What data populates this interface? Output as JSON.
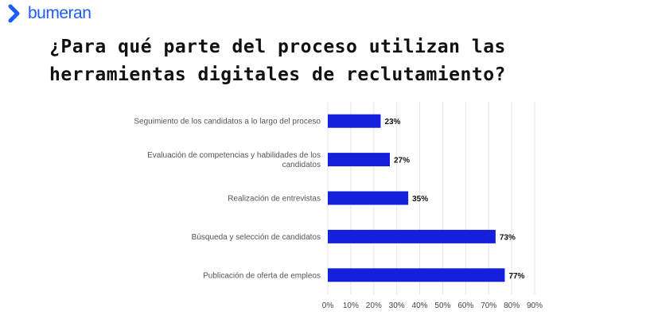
{
  "brand": {
    "name": "bumeran",
    "logo_icon": "chevron-right-icon",
    "color": "#1d5cff"
  },
  "chart_data": {
    "type": "bar",
    "orientation": "horizontal",
    "title": "¿Para qué parte del proceso utilizan las herramientas digitales de reclutamiento?",
    "categories": [
      [
        "Seguimiento de los candidatos a lo largo del proceso"
      ],
      [
        "Evaluación de competencias y habilidades de los",
        "candidatos"
      ],
      [
        "Realización de entrevistas"
      ],
      [
        "Búsqueda y selección de candidatos"
      ],
      [
        "Publicación de oferta de empleos"
      ]
    ],
    "values": [
      23,
      27,
      35,
      73,
      77
    ],
    "value_labels": [
      "23%",
      "27%",
      "35%",
      "73%",
      "77%"
    ],
    "xlim": [
      0,
      90
    ],
    "xticks": [
      0,
      10,
      20,
      30,
      40,
      50,
      60,
      70,
      80,
      90
    ],
    "xtick_labels": [
      "0%",
      "10%",
      "20%",
      "30%",
      "40%",
      "50%",
      "60%",
      "70%",
      "80%",
      "90%"
    ],
    "xlabel": "",
    "ylabel": "",
    "grid": true,
    "legend": "none",
    "bar_color": "#1520dd",
    "grid_color": "#e3e3e3"
  }
}
